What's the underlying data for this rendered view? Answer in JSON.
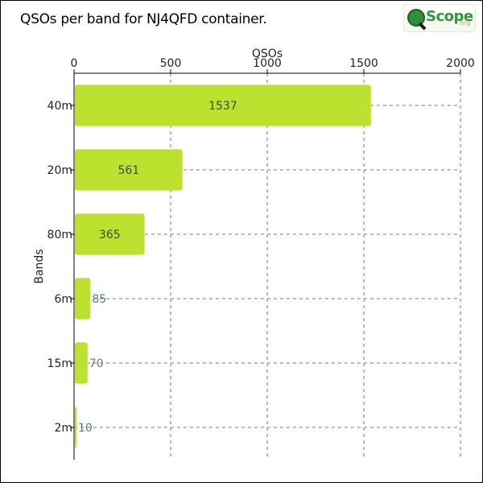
{
  "chart_data": {
    "type": "bar",
    "orientation": "horizontal",
    "title": "QSOs per band for NJ4QFD container.",
    "xlabel": "QSOs",
    "ylabel": "Bands",
    "categories": [
      "40m",
      "20m",
      "80m",
      "6m",
      "15m",
      "2m"
    ],
    "values": [
      1537,
      561,
      365,
      85,
      70,
      10
    ],
    "data_labels": [
      "1537",
      "561",
      "365",
      "85",
      "70",
      "10"
    ],
    "xlim": [
      0,
      2000
    ],
    "x_ticks": [
      0,
      500,
      1000,
      1500,
      2000
    ],
    "x_tick_labels": [
      "0",
      "500",
      "1000",
      "1500",
      "2000"
    ],
    "x_axis_position": "top",
    "grid": true,
    "bar_color": "#bce22f",
    "label_color_inside": "#3d4a22",
    "label_color_outside": "#5a7a8c"
  },
  "logo": {
    "text": "Scope",
    "suffix": ".org"
  }
}
